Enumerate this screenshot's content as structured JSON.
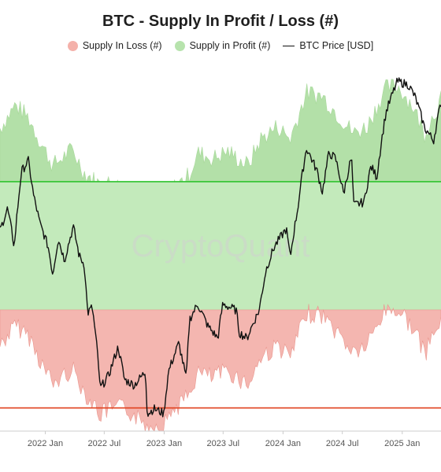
{
  "chart_data": {
    "type": "area",
    "title": "BTC - Supply In Profit / Loss (#)",
    "watermark": "CryptoQuant",
    "legend": [
      {
        "label": "Supply In Loss (#)",
        "color": "#f4b1aa",
        "kind": "dot"
      },
      {
        "label": "Supply in Profit (#)",
        "color": "#b7e3ad",
        "kind": "dot"
      },
      {
        "label": "BTC Price [USD]",
        "color": "#111111",
        "kind": "line"
      }
    ],
    "colors": {
      "loss_fill": "#f4b6b0",
      "profit_fill": "#c3eabb",
      "profit_top_fill": "#b3e0a8",
      "loss_line": "#e9968e",
      "price_line": "#111111",
      "green_level": "#2ec22e",
      "red_level": "#e0401c",
      "axis": "#cccccc"
    },
    "x_ticks": [
      "2022 Jan",
      "2022 Jul",
      "2023 Jan",
      "2023 Jul",
      "2024 Jan",
      "2024 Jul",
      "2025 Jan"
    ],
    "x_range": [
      "2021-08-15",
      "2025-04-30"
    ],
    "y_range_supply_btc_millions": [
      0,
      20
    ],
    "y_range_price_usd_log": [
      15000,
      110000
    ],
    "horizontal_levels": [
      {
        "name": "green-level",
        "value": 14.0
      },
      {
        "name": "red-level",
        "value": 1.3
      }
    ],
    "series": [
      {
        "name": "Supply in Profit (#)",
        "dates": [
          "2021-08-15",
          "2021-10-01",
          "2021-11-10",
          "2021-12-15",
          "2022-01-25",
          "2022-03-25",
          "2022-05-01",
          "2022-06-20",
          "2022-07-15",
          "2022-09-01",
          "2022-11-10",
          "2022-12-31",
          "2023-01-20",
          "2023-03-15",
          "2023-04-15",
          "2023-06-01",
          "2023-07-15",
          "2023-09-15",
          "2023-10-25",
          "2023-12-15",
          "2024-01-23",
          "2024-03-13",
          "2024-05-01",
          "2024-06-15",
          "2024-08-05",
          "2024-09-15",
          "2024-11-10",
          "2024-12-17",
          "2025-02-01",
          "2025-03-10",
          "2025-04-30"
        ],
        "values": [
          17.0,
          18.3,
          17.6,
          16.3,
          14.9,
          15.8,
          14.5,
          13.8,
          13.9,
          13.7,
          12.7,
          12.7,
          13.5,
          14.3,
          15.6,
          15.3,
          15.7,
          14.9,
          16.4,
          17.1,
          16.4,
          19.0,
          18.8,
          17.8,
          16.7,
          17.1,
          19.2,
          19.4,
          18.3,
          16.7,
          18.6
        ]
      },
      {
        "name": "Supply In Loss (#)",
        "dates": [
          "2021-08-15",
          "2021-10-01",
          "2021-11-10",
          "2021-12-15",
          "2022-01-25",
          "2022-03-25",
          "2022-05-01",
          "2022-06-20",
          "2022-07-15",
          "2022-09-01",
          "2022-11-10",
          "2022-12-31",
          "2023-01-20",
          "2023-03-15",
          "2023-04-15",
          "2023-06-01",
          "2023-07-15",
          "2023-09-15",
          "2023-10-25",
          "2023-12-15",
          "2024-01-23",
          "2024-03-13",
          "2024-05-01",
          "2024-06-15",
          "2024-08-05",
          "2024-09-15",
          "2024-11-10",
          "2024-12-17",
          "2025-02-01",
          "2025-03-10",
          "2025-04-30"
        ],
        "values": [
          2.0,
          0.9,
          1.4,
          2.8,
          4.2,
          3.3,
          4.6,
          5.9,
          5.6,
          5.5,
          6.5,
          6.5,
          5.7,
          4.9,
          3.5,
          3.8,
          3.4,
          4.2,
          2.7,
          2.0,
          2.7,
          0.2,
          0.3,
          1.3,
          2.4,
          2.0,
          0.0,
          0.0,
          0.9,
          2.5,
          0.6
        ]
      },
      {
        "name": "BTC Price [USD]",
        "dates": [
          "2021-08-15",
          "2021-09-07",
          "2021-09-28",
          "2021-10-20",
          "2021-11-10",
          "2021-11-26",
          "2021-12-15",
          "2022-01-10",
          "2022-01-24",
          "2022-02-10",
          "2022-03-01",
          "2022-03-28",
          "2022-04-15",
          "2022-05-01",
          "2022-05-11",
          "2022-05-25",
          "2022-06-13",
          "2022-06-18",
          "2022-07-15",
          "2022-08-13",
          "2022-09-01",
          "2022-10-01",
          "2022-11-05",
          "2022-11-10",
          "2022-12-01",
          "2022-12-31",
          "2023-01-15",
          "2023-02-15",
          "2023-03-10",
          "2023-03-20",
          "2023-04-14",
          "2023-05-15",
          "2023-06-15",
          "2023-06-30",
          "2023-08-10",
          "2023-08-20",
          "2023-09-12",
          "2023-10-20",
          "2023-11-10",
          "2023-12-05",
          "2024-01-11",
          "2024-01-23",
          "2024-02-15",
          "2024-03-13",
          "2024-04-15",
          "2024-05-01",
          "2024-05-21",
          "2024-06-10",
          "2024-07-05",
          "2024-07-29",
          "2024-08-05",
          "2024-09-06",
          "2024-09-27",
          "2024-10-15",
          "2024-11-12",
          "2024-12-17",
          "2025-01-20",
          "2025-02-10",
          "2025-03-10",
          "2025-04-07",
          "2025-04-30"
        ],
        "values": [
          46000,
          52000,
          42000,
          64000,
          68000,
          56000,
          48000,
          42000,
          36000,
          44000,
          39000,
          47000,
          40000,
          38000,
          29000,
          30000,
          22000,
          19000,
          20500,
          24000,
          20000,
          19400,
          20900,
          16500,
          17000,
          16550,
          21000,
          24500,
          20000,
          28000,
          30500,
          27000,
          25200,
          30500,
          29500,
          26000,
          25200,
          29500,
          37000,
          42000,
          46500,
          39500,
          52000,
          73000,
          64000,
          57000,
          71000,
          69000,
          56500,
          69500,
          53000,
          54000,
          66000,
          62000,
          89000,
          106000,
          104000,
          97000,
          82000,
          76000,
          94000
        ]
      }
    ]
  }
}
